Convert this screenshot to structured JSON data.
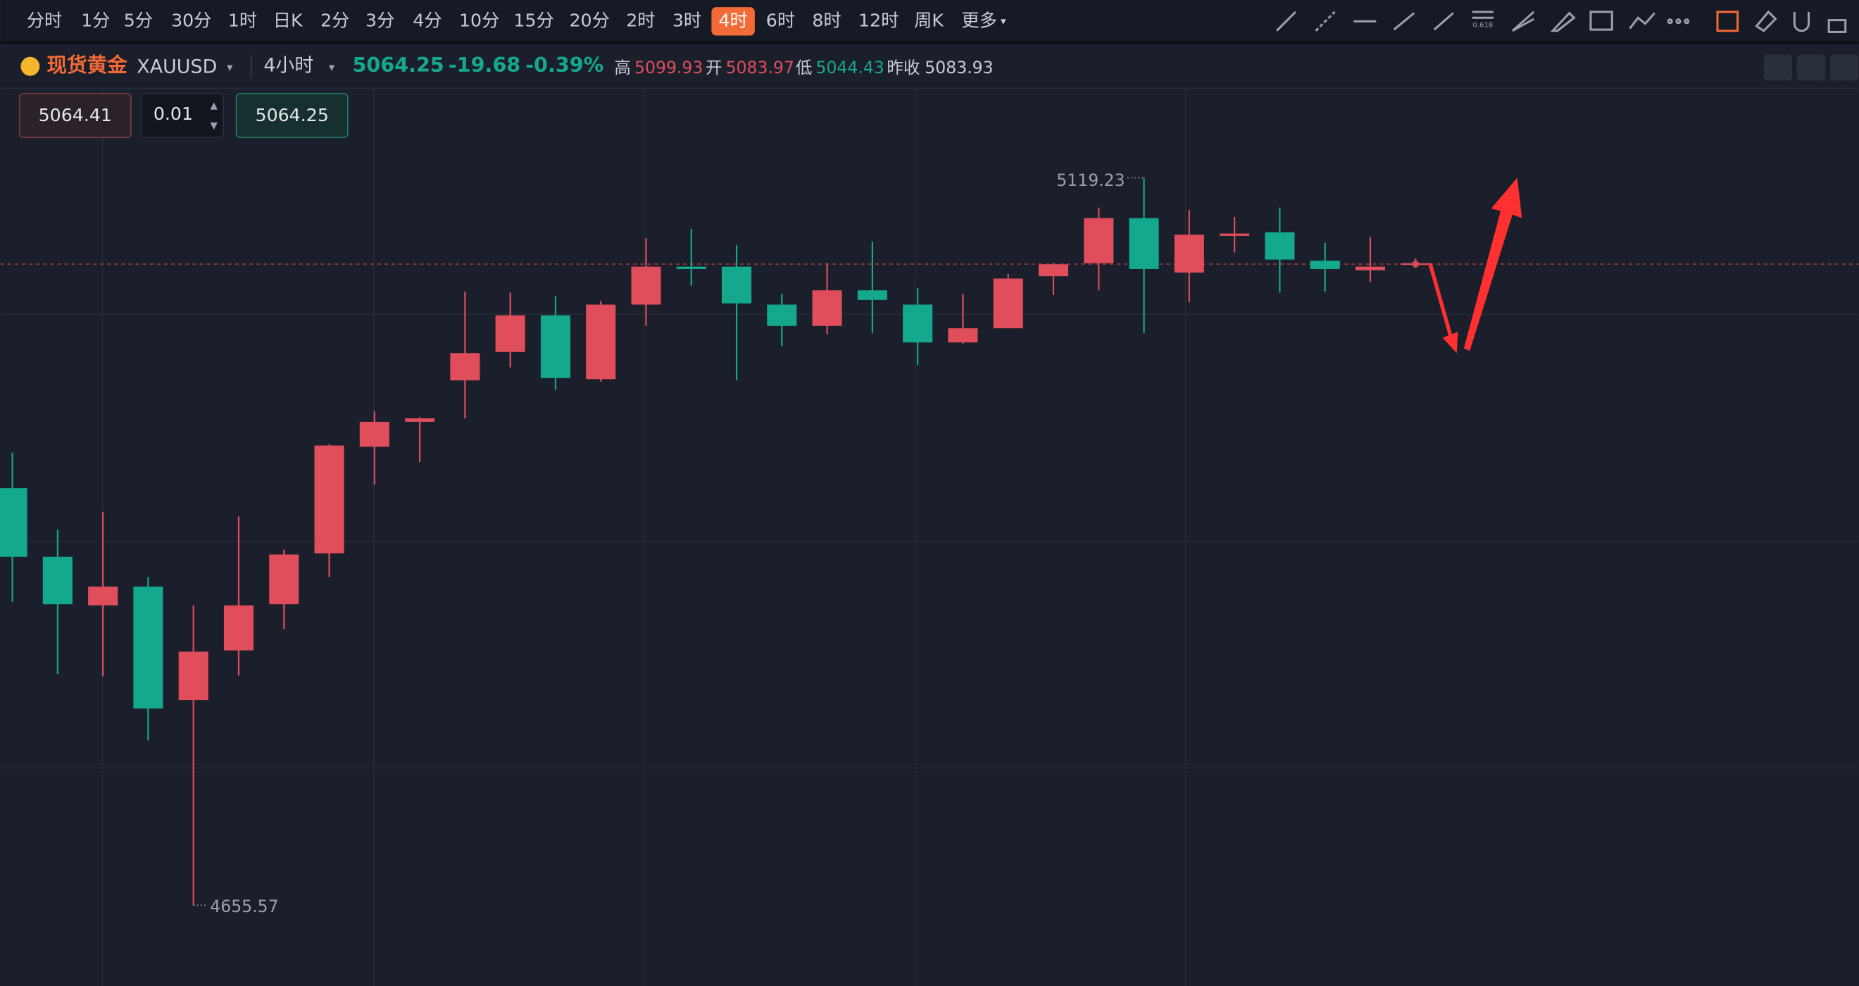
{
  "toolbar": {
    "timeframes": [
      "分时",
      "1分",
      "5分",
      "30分",
      "1时",
      "日K",
      "2分",
      "3分",
      "4分",
      "10分",
      "15分",
      "20分",
      "2时",
      "3时",
      "4时",
      "6时",
      "8时",
      "12时",
      "周K",
      "更多"
    ],
    "active": 14
  },
  "quote": {
    "name": "现货黄金",
    "symbol": "XAUUSD",
    "interval": "4小时",
    "price": "5064.25",
    "change": "-19.68",
    "change_pct": "-0.39%",
    "high_label": "高",
    "high": "5099.93",
    "open_label": "开",
    "open": "5083.97",
    "low_label": "低",
    "low": "5044.43",
    "prev_label": "昨收",
    "prev": "5083.93"
  },
  "order": {
    "sell": "5064.41",
    "qty": "0.01",
    "buy": "5064.25"
  },
  "chart_data": {
    "type": "candlestick",
    "up_color": "#e04d5b",
    "down_color": "#14a98c",
    "ylim": [
      4604.1,
      5175.9
    ],
    "last_price": 5064.25,
    "open": [
      4921.4,
      4877.6,
      4846.7,
      4858.7,
      4786.3,
      4818.0,
      4847.4,
      4879.9,
      4947.8,
      4963.7,
      4990.1,
      5008.2,
      5031.6,
      4990.9,
      5038.4,
      5062.6,
      5062.6,
      5038.4,
      5024.8,
      5047.5,
      5038.4,
      5014.3,
      5023.3,
      5056.5,
      5064.8,
      5093.5,
      5058.8,
      5082.2,
      5084.5,
      5066.4,
      5060.3,
      5064.1
    ],
    "high": [
      4944.0,
      4894.9,
      4906.3,
      4864.8,
      4846.7,
      4903.3,
      4882.1,
      4949.3,
      4970.5,
      4966.7,
      5046.7,
      5046.0,
      5043.7,
      5040.7,
      5080.7,
      5086.7,
      5076.2,
      5045.2,
      5064.8,
      5078.5,
      5049.0,
      5045.2,
      5058.0,
      5064.8,
      5100.3,
      5119.23,
      5098.8,
      5094.3,
      5100.3,
      5077.7,
      5081.5,
      5067.9
    ],
    "low": [
      4848.9,
      4802.9,
      4801.4,
      4760.6,
      4655.57,
      4802.1,
      4831.6,
      4864.8,
      4923.6,
      4938.0,
      4965.9,
      4998.4,
      4984.1,
      4989.3,
      5024.8,
      5050.5,
      4990.1,
      5012.0,
      5019.5,
      5020.3,
      4999.9,
      5013.5,
      5023.3,
      5044.5,
      5047.5,
      5020.3,
      5039.9,
      5071.7,
      5046.0,
      5046.7,
      5052.8,
      5061.8
    ],
    "close": [
      4877.6,
      4847.4,
      4858.7,
      4781.0,
      4817.2,
      4846.7,
      4879.1,
      4948.6,
      4963.7,
      4965.9,
      5007.5,
      5031.6,
      4991.6,
      5038.4,
      5062.6,
      5061.1,
      5039.2,
      5024.8,
      5047.5,
      5041.4,
      5014.3,
      5023.3,
      5055.0,
      5064.1,
      5093.5,
      5061.1,
      5083.0,
      5083.7,
      5067.1,
      5061.1,
      5062.6,
      5064.8
    ]
  }
}
